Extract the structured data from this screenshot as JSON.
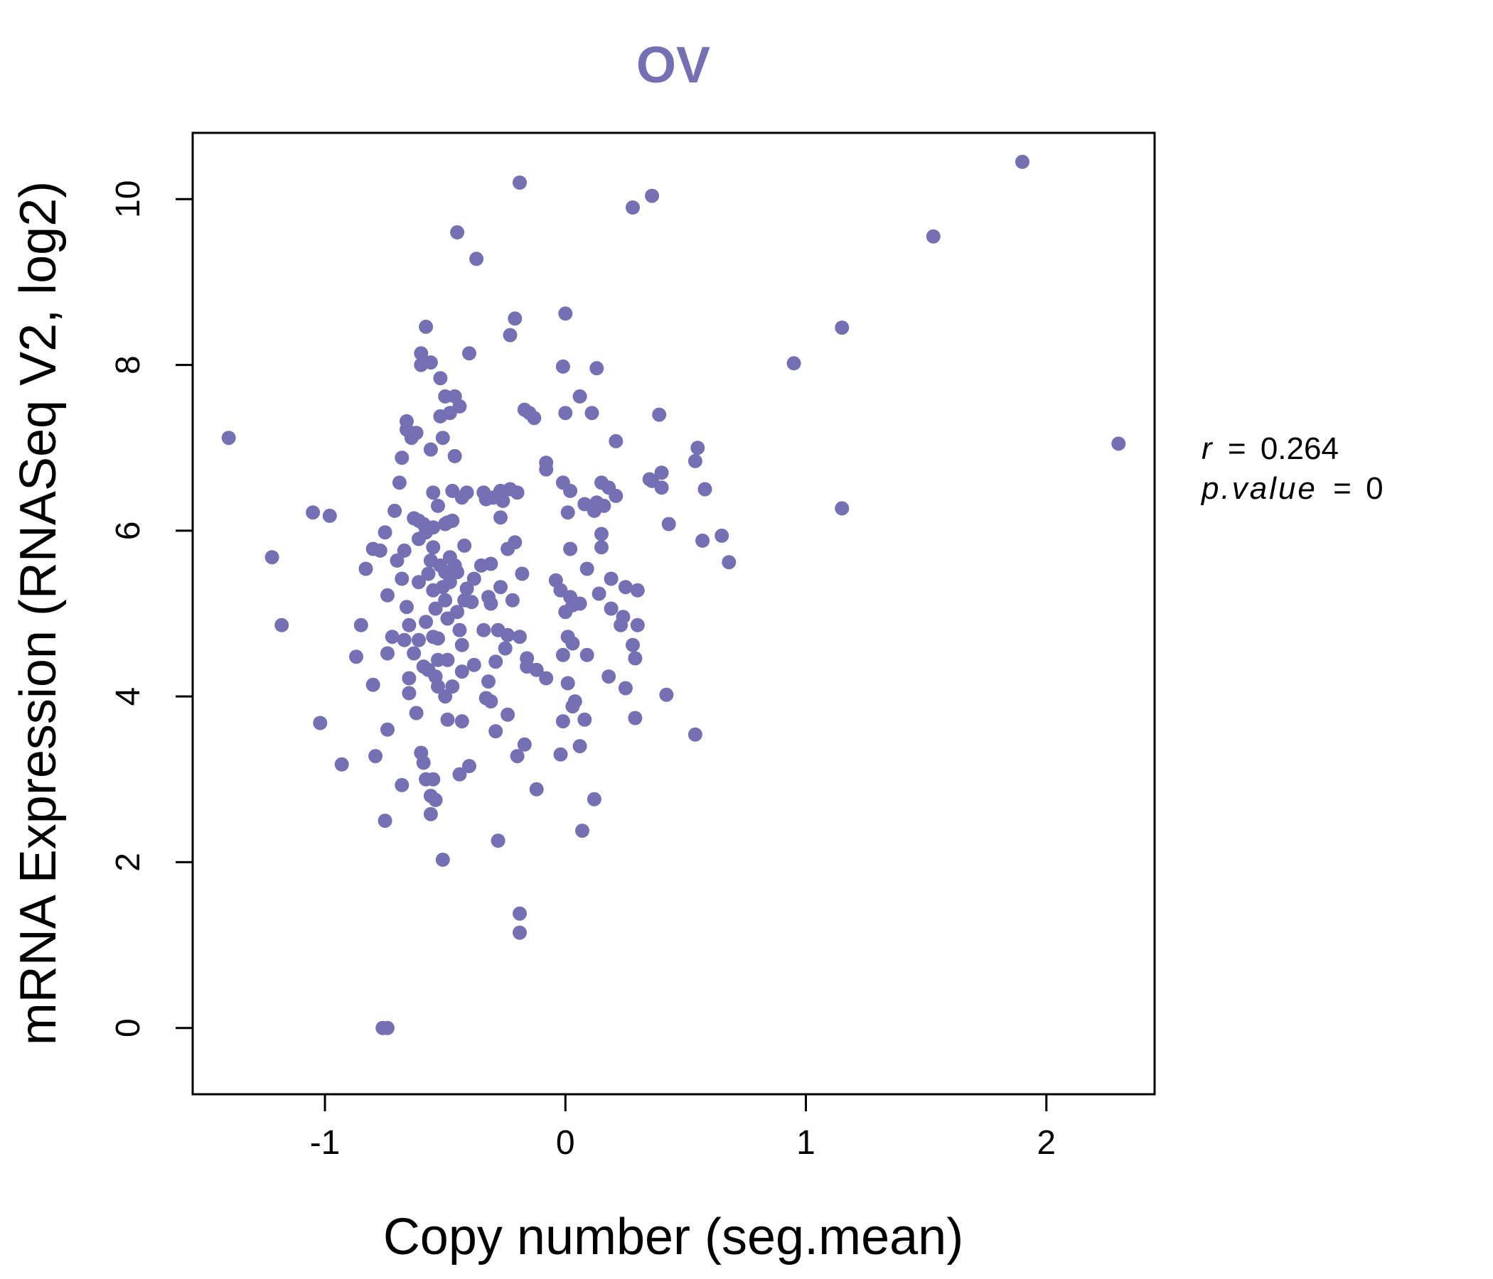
{
  "chart_data": {
    "type": "scatter",
    "title": "OV",
    "xlabel": "Copy number (seg.mean)",
    "ylabel": "mRNA Expression (RNASeq V2, log2)",
    "xlim": [
      -1.55,
      2.45
    ],
    "ylim": [
      -0.8,
      10.8
    ],
    "xticks": [
      -1,
      0,
      1,
      2
    ],
    "xtick_labels": [
      "-1",
      "0",
      "1",
      "2"
    ],
    "yticks": [
      0,
      2,
      4,
      6,
      8,
      10
    ],
    "ytick_labels": [
      "0",
      "2",
      "4",
      "6",
      "8",
      "10"
    ],
    "grid": false,
    "point_color": "#7570b3",
    "stats": {
      "r_label": "r",
      "r_value": "0.264",
      "p_label": "p.value",
      "p_value": "0",
      "equals": "="
    },
    "points": [
      [
        1.9,
        10.45
      ],
      [
        1.53,
        9.55
      ],
      [
        2.3,
        7.05
      ],
      [
        1.15,
        8.45
      ],
      [
        0.95,
        8.02
      ],
      [
        1.15,
        6.27
      ],
      [
        -1.4,
        7.12
      ],
      [
        -1.22,
        5.68
      ],
      [
        -1.18,
        4.86
      ],
      [
        -1.05,
        6.22
      ],
      [
        -0.98,
        6.18
      ],
      [
        -1.02,
        3.68
      ],
      [
        -0.93,
        3.18
      ],
      [
        -0.87,
        4.48
      ],
      [
        -0.85,
        4.86
      ],
      [
        -0.83,
        5.54
      ],
      [
        -0.8,
        5.78
      ],
      [
        -0.8,
        4.14
      ],
      [
        -0.79,
        3.28
      ],
      [
        -0.77,
        5.76
      ],
      [
        -0.75,
        5.98
      ],
      [
        -0.74,
        5.22
      ],
      [
        -0.74,
        4.52
      ],
      [
        -0.74,
        3.6
      ],
      [
        -0.75,
        2.5
      ],
      [
        -0.76,
        0.0
      ],
      [
        -0.74,
        0.0
      ],
      [
        -0.72,
        4.72
      ],
      [
        -0.71,
        6.24
      ],
      [
        -0.7,
        5.64
      ],
      [
        -0.69,
        6.58
      ],
      [
        -0.68,
        6.88
      ],
      [
        -0.68,
        5.42
      ],
      [
        -0.68,
        2.93
      ],
      [
        -0.67,
        5.76
      ],
      [
        -0.67,
        4.68
      ],
      [
        -0.66,
        7.22
      ],
      [
        -0.66,
        7.32
      ],
      [
        -0.66,
        5.08
      ],
      [
        -0.65,
        4.86
      ],
      [
        -0.65,
        4.22
      ],
      [
        -0.65,
        4.04
      ],
      [
        -0.64,
        7.12
      ],
      [
        -0.63,
        6.15
      ],
      [
        -0.63,
        4.52
      ],
      [
        -0.62,
        7.18
      ],
      [
        -0.62,
        3.8
      ],
      [
        -0.61,
        6.12
      ],
      [
        -0.61,
        5.9
      ],
      [
        -0.61,
        5.38
      ],
      [
        -0.61,
        4.68
      ],
      [
        -0.6,
        8.14
      ],
      [
        -0.6,
        8.0
      ],
      [
        -0.6,
        3.32
      ],
      [
        -0.59,
        6.08
      ],
      [
        -0.59,
        4.36
      ],
      [
        -0.59,
        3.2
      ],
      [
        -0.58,
        8.46
      ],
      [
        -0.58,
        5.98
      ],
      [
        -0.58,
        4.9
      ],
      [
        -0.58,
        3.0
      ],
      [
        -0.57,
        5.48
      ],
      [
        -0.57,
        4.32
      ],
      [
        -0.56,
        8.03
      ],
      [
        -0.56,
        6.98
      ],
      [
        -0.56,
        5.64
      ],
      [
        -0.56,
        2.8
      ],
      [
        -0.56,
        2.58
      ],
      [
        -0.55,
        6.46
      ],
      [
        -0.55,
        6.04
      ],
      [
        -0.55,
        5.8
      ],
      [
        -0.55,
        5.28
      ],
      [
        -0.55,
        4.72
      ],
      [
        -0.55,
        3.0
      ],
      [
        -0.54,
        5.06
      ],
      [
        -0.54,
        4.24
      ],
      [
        -0.54,
        2.75
      ],
      [
        -0.53,
        6.3
      ],
      [
        -0.53,
        4.7
      ],
      [
        -0.53,
        4.44
      ],
      [
        -0.53,
        4.12
      ],
      [
        -0.52,
        7.84
      ],
      [
        -0.52,
        7.38
      ],
      [
        -0.52,
        5.58
      ],
      [
        -0.51,
        7.12
      ],
      [
        -0.51,
        5.32
      ],
      [
        -0.51,
        2.03
      ],
      [
        -0.5,
        7.62
      ],
      [
        -0.5,
        6.08
      ],
      [
        -0.5,
        5.5
      ],
      [
        -0.5,
        5.16
      ],
      [
        -0.5,
        4.0
      ],
      [
        -0.49,
        6.1
      ],
      [
        -0.49,
        4.94
      ],
      [
        -0.49,
        4.44
      ],
      [
        -0.49,
        3.72
      ],
      [
        -0.48,
        7.42
      ],
      [
        -0.48,
        5.68
      ],
      [
        -0.48,
        5.38
      ],
      [
        -0.47,
        6.48
      ],
      [
        -0.47,
        6.12
      ],
      [
        -0.47,
        4.12
      ],
      [
        -0.46,
        7.62
      ],
      [
        -0.46,
        6.9
      ],
      [
        -0.46,
        5.58
      ],
      [
        -0.45,
        9.6
      ],
      [
        -0.45,
        5.5
      ],
      [
        -0.45,
        5.02
      ],
      [
        -0.44,
        7.5
      ],
      [
        -0.44,
        4.8
      ],
      [
        -0.44,
        3.06
      ],
      [
        -0.43,
        6.4
      ],
      [
        -0.43,
        4.62
      ],
      [
        -0.43,
        4.3
      ],
      [
        -0.43,
        3.7
      ],
      [
        -0.42,
        5.82
      ],
      [
        -0.42,
        5.16
      ],
      [
        -0.41,
        6.46
      ],
      [
        -0.41,
        5.3
      ],
      [
        -0.4,
        8.14
      ],
      [
        -0.4,
        3.16
      ],
      [
        -0.39,
        5.14
      ],
      [
        -0.38,
        5.42
      ],
      [
        -0.38,
        4.38
      ],
      [
        -0.37,
        9.28
      ],
      [
        -0.35,
        5.58
      ],
      [
        -0.34,
        6.46
      ],
      [
        -0.34,
        4.8
      ],
      [
        -0.33,
        6.38
      ],
      [
        -0.33,
        3.98
      ],
      [
        -0.32,
        5.2
      ],
      [
        -0.32,
        4.18
      ],
      [
        -0.31,
        5.6
      ],
      [
        -0.31,
        5.12
      ],
      [
        -0.31,
        3.94
      ],
      [
        -0.3,
        6.4
      ],
      [
        -0.29,
        3.58
      ],
      [
        -0.29,
        4.42
      ],
      [
        -0.28,
        4.8
      ],
      [
        -0.28,
        2.26
      ],
      [
        -0.27,
        6.48
      ],
      [
        -0.27,
        6.16
      ],
      [
        -0.27,
        5.32
      ],
      [
        -0.26,
        6.36
      ],
      [
        -0.25,
        4.58
      ],
      [
        -0.24,
        5.78
      ],
      [
        -0.24,
        4.74
      ],
      [
        -0.24,
        3.78
      ],
      [
        -0.23,
        8.36
      ],
      [
        -0.23,
        6.5
      ],
      [
        -0.22,
        5.16
      ],
      [
        -0.21,
        5.86
      ],
      [
        -0.21,
        8.56
      ],
      [
        -0.2,
        6.46
      ],
      [
        -0.2,
        3.28
      ],
      [
        -0.19,
        10.2
      ],
      [
        -0.19,
        1.15
      ],
      [
        -0.19,
        1.38
      ],
      [
        -0.19,
        4.72
      ],
      [
        -0.18,
        5.48
      ],
      [
        -0.17,
        7.46
      ],
      [
        -0.17,
        3.42
      ],
      [
        -0.16,
        4.46
      ],
      [
        -0.16,
        4.36
      ],
      [
        -0.15,
        7.42
      ],
      [
        -0.13,
        7.36
      ],
      [
        -0.12,
        4.32
      ],
      [
        -0.12,
        2.88
      ],
      [
        -0.08,
        6.82
      ],
      [
        -0.08,
        6.74
      ],
      [
        -0.08,
        4.22
      ],
      [
        -0.04,
        5.4
      ],
      [
        -0.02,
        5.28
      ],
      [
        -0.01,
        7.98
      ],
      [
        -0.01,
        6.58
      ],
      [
        -0.01,
        4.5
      ],
      [
        -0.01,
        3.7
      ],
      [
        -0.02,
        3.3
      ],
      [
        0.0,
        8.62
      ],
      [
        0.0,
        7.42
      ],
      [
        0.0,
        5.02
      ],
      [
        0.01,
        6.22
      ],
      [
        0.01,
        4.72
      ],
      [
        0.01,
        4.16
      ],
      [
        0.02,
        6.48
      ],
      [
        0.02,
        5.78
      ],
      [
        0.02,
        5.2
      ],
      [
        0.03,
        5.1
      ],
      [
        0.03,
        4.64
      ],
      [
        0.03,
        3.88
      ],
      [
        0.04,
        3.94
      ],
      [
        0.06,
        7.62
      ],
      [
        0.06,
        5.12
      ],
      [
        0.06,
        3.4
      ],
      [
        0.07,
        2.38
      ],
      [
        0.08,
        6.32
      ],
      [
        0.08,
        3.72
      ],
      [
        0.09,
        5.54
      ],
      [
        0.09,
        4.5
      ],
      [
        0.11,
        7.42
      ],
      [
        0.12,
        6.24
      ],
      [
        0.12,
        2.76
      ],
      [
        0.13,
        7.96
      ],
      [
        0.13,
        6.34
      ],
      [
        0.14,
        5.24
      ],
      [
        0.15,
        6.58
      ],
      [
        0.15,
        5.8
      ],
      [
        0.15,
        5.96
      ],
      [
        0.16,
        6.3
      ],
      [
        0.18,
        6.52
      ],
      [
        0.18,
        4.24
      ],
      [
        0.19,
        5.42
      ],
      [
        0.19,
        5.06
      ],
      [
        0.21,
        7.08
      ],
      [
        0.21,
        6.42
      ],
      [
        0.23,
        4.86
      ],
      [
        0.24,
        4.96
      ],
      [
        0.25,
        5.32
      ],
      [
        0.25,
        4.1
      ],
      [
        0.28,
        9.9
      ],
      [
        0.28,
        4.62
      ],
      [
        0.29,
        4.46
      ],
      [
        0.29,
        3.74
      ],
      [
        0.3,
        5.28
      ],
      [
        0.3,
        4.86
      ],
      [
        0.35,
        6.62
      ],
      [
        0.36,
        10.04
      ],
      [
        0.36,
        6.6
      ],
      [
        0.39,
        7.4
      ],
      [
        0.4,
        6.7
      ],
      [
        0.4,
        6.52
      ],
      [
        0.42,
        4.02
      ],
      [
        0.43,
        6.08
      ],
      [
        0.54,
        6.84
      ],
      [
        0.54,
        3.54
      ],
      [
        0.55,
        7.0
      ],
      [
        0.57,
        5.88
      ],
      [
        0.58,
        6.5
      ],
      [
        0.65,
        5.94
      ],
      [
        0.68,
        5.62
      ]
    ]
  }
}
